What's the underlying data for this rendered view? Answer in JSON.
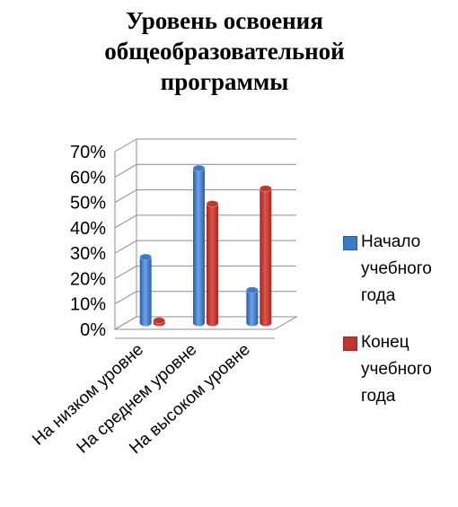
{
  "chart_data": {
    "type": "bar",
    "title_lines": [
      "Уровень освоения",
      "общеобразовательной",
      "программы"
    ],
    "categories": [
      "На низком уровне",
      "На среднем уровне",
      "На высоком уровне"
    ],
    "series": [
      {
        "name": "Начало\nучебного\nгода",
        "values": [
          0.26,
          0.61,
          0.13
        ],
        "color": "#3d79c9"
      },
      {
        "name": "Конец\nучебного\nгода",
        "values": [
          0.01,
          0.47,
          0.53
        ],
        "color": "#c0362f"
      }
    ],
    "ylim": [
      0,
      0.7
    ],
    "yticks": [
      "0%",
      "10%",
      "20%",
      "30%",
      "40%",
      "50%",
      "60%",
      "70%"
    ],
    "grid": true,
    "legend_position": "right"
  }
}
